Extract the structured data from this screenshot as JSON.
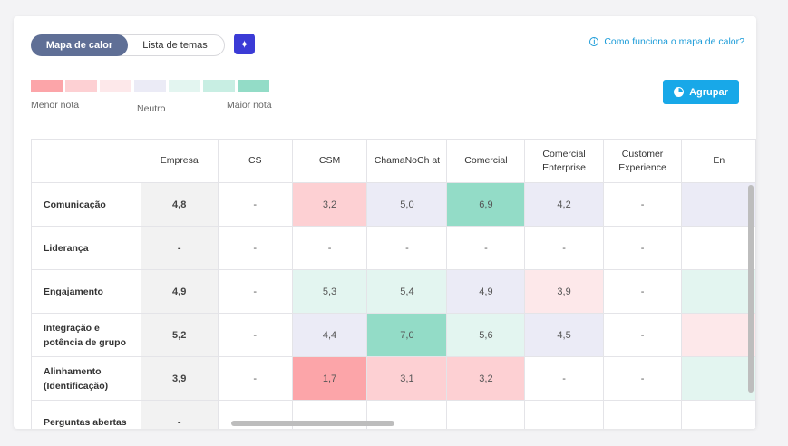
{
  "toggle": {
    "heatmap_label": "Mapa de calor",
    "themes_label": "Lista de temas"
  },
  "help_link": "Como funciona o mapa de calor?",
  "legend": {
    "colors": [
      "#fca5a9",
      "#fdd0d3",
      "#fde8ea",
      "#ebebf6",
      "#e3f5f0",
      "#c8eee3",
      "#93dcc7"
    ],
    "min_label": "Menor nota",
    "neutral_label": "Neutro",
    "max_label": "Maior nota"
  },
  "group_button": "Agrupar",
  "columns": [
    "Empresa",
    "CS",
    "CSM",
    "ChamaNoCh at",
    "Comercial",
    "Comercial Enterprise",
    "Customer Experience",
    "En"
  ],
  "rows": [
    {
      "label": "Comunicação",
      "cells": [
        "4,8",
        "-",
        "3,2",
        "5,0",
        "6,9",
        "4,2",
        "-",
        ""
      ]
    },
    {
      "label": "Liderança",
      "cells": [
        "-",
        "-",
        "-",
        "-",
        "-",
        "-",
        "-",
        ""
      ]
    },
    {
      "label": "Engajamento",
      "cells": [
        "4,9",
        "-",
        "5,3",
        "5,4",
        "4,9",
        "3,9",
        "-",
        ""
      ]
    },
    {
      "label": "Integração e potência de grupo",
      "cells": [
        "5,2",
        "-",
        "4,4",
        "7,0",
        "5,6",
        "4,5",
        "-",
        ""
      ]
    },
    {
      "label": "Alinhamento (Identificação)",
      "cells": [
        "3,9",
        "-",
        "1,7",
        "3,1",
        "3,2",
        "-",
        "-",
        ""
      ]
    },
    {
      "label": "Perguntas abertas",
      "cells": [
        "-",
        "",
        "",
        "",
        "",
        "",
        "",
        ""
      ]
    }
  ],
  "cell_colors": [
    [
      "#f2f2f2",
      "#ffffff",
      "#fdd0d3",
      "#ebebf6",
      "#93dcc7",
      "#ebebf6",
      "#ffffff",
      "#ebebf6"
    ],
    [
      "#f2f2f2",
      "#ffffff",
      "#ffffff",
      "#ffffff",
      "#ffffff",
      "#ffffff",
      "#ffffff",
      "#ffffff"
    ],
    [
      "#f2f2f2",
      "#ffffff",
      "#e3f5f0",
      "#e3f5f0",
      "#ebebf6",
      "#fde8ea",
      "#ffffff",
      "#e3f5f0"
    ],
    [
      "#f2f2f2",
      "#ffffff",
      "#ebebf6",
      "#93dcc7",
      "#e3f5f0",
      "#ebebf6",
      "#ffffff",
      "#fde8ea"
    ],
    [
      "#f2f2f2",
      "#ffffff",
      "#fca5a9",
      "#fdd0d3",
      "#fdd0d3",
      "#ffffff",
      "#ffffff",
      "#e3f5f0"
    ],
    [
      "#f2f2f2",
      "#ffffff",
      "#ffffff",
      "#ffffff",
      "#ffffff",
      "#ffffff",
      "#ffffff",
      "#ffffff"
    ]
  ]
}
